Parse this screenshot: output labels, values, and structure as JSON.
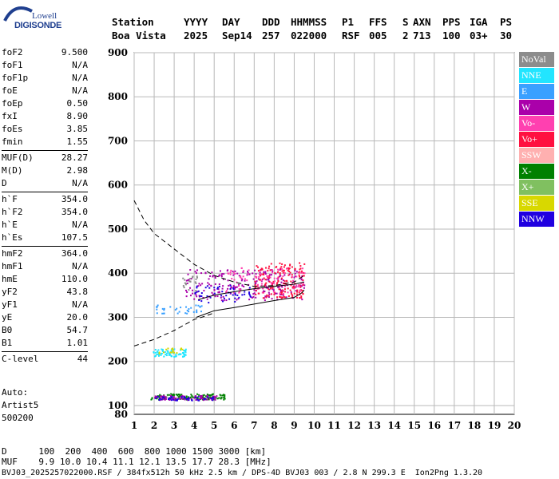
{
  "logo": {
    "line1": "Lowell",
    "line2": "DIGISONDE"
  },
  "header": {
    "row1": [
      "Station",
      "YYYY",
      "DAY",
      "DDD",
      "HHMMSS",
      "P1",
      "FFS",
      "S",
      "AXN",
      "PPS",
      "IGA",
      "PS"
    ],
    "row2": [
      "Boa Vista",
      "2025",
      "Sep14",
      "257",
      "022000",
      "RSF",
      "005",
      "2",
      "713",
      "100",
      "03+",
      "30"
    ]
  },
  "params": [
    [
      [
        "foF2",
        "9.500"
      ],
      [
        "foF1",
        "N/A"
      ],
      [
        "foF1p",
        "N/A"
      ],
      [
        "foE",
        "N/A"
      ],
      [
        "foEp",
        "0.50"
      ],
      [
        "fxI",
        "8.90"
      ],
      [
        "foEs",
        "3.85"
      ],
      [
        "fmin",
        "1.55"
      ]
    ],
    [
      [
        "MUF(D)",
        "28.27"
      ],
      [
        "M(D)",
        "2.98"
      ],
      [
        "D",
        "N/A"
      ]
    ],
    [
      [
        "h`F",
        "354.0"
      ],
      [
        "h`F2",
        "354.0"
      ],
      [
        "h`E",
        "N/A"
      ],
      [
        "h`Es",
        "107.5"
      ]
    ],
    [
      [
        "hmF2",
        "364.0"
      ],
      [
        "hmF1",
        "N/A"
      ],
      [
        "hmE",
        "110.0"
      ],
      [
        "yF2",
        "43.8"
      ],
      [
        "yF1",
        "N/A"
      ],
      [
        "yE",
        "20.0"
      ],
      [
        "B0",
        "54.7"
      ],
      [
        "B1",
        "1.01"
      ]
    ],
    [
      [
        "C-level",
        "44"
      ]
    ]
  ],
  "auto": [
    "Auto:",
    "Artist5",
    "500200"
  ],
  "legend": [
    {
      "label": "NoVal",
      "color": "#8c8c8c"
    },
    {
      "label": "NNE",
      "color": "#22e5ff"
    },
    {
      "label": "E",
      "color": "#3aa0ff"
    },
    {
      "label": "W",
      "color": "#aa00aa"
    },
    {
      "label": "Vo-",
      "color": "#ff40b0"
    },
    {
      "label": "Vo+",
      "color": "#ff1040"
    },
    {
      "label": "SSW",
      "color": "#ffb0b0"
    },
    {
      "label": "X-",
      "color": "#008000"
    },
    {
      "label": "X+",
      "color": "#80c060"
    },
    {
      "label": "SSE",
      "color": "#d8d800"
    },
    {
      "label": "NNW",
      "color": "#2000e0"
    }
  ],
  "bottom": {
    "d_line": "D      100  200  400  600  800 1000 1500 3000 [km]",
    "muf_line": "MUF    9.9 10.0 10.4 11.1 12.1 13.5 17.7 28.3 [MHz]",
    "file_line": "BVJ03_2025257022000.RSF / 384fx512h 50 kHz 2.5 km / DPS-4D BVJ03 003 / 2.8 N 299.3 E  Ion2Png 1.3.20"
  },
  "chart_data": {
    "type": "scatter",
    "xlim": [
      1,
      20
    ],
    "ylim": [
      80,
      900
    ],
    "xticks": [
      "1",
      "2",
      "3",
      "4",
      "5",
      "6",
      "7",
      "8",
      "9",
      "10",
      "11",
      "12",
      "13",
      "14",
      "15",
      "16",
      "17",
      "18",
      "19",
      "20"
    ],
    "yticks": [
      "100",
      "200",
      "300",
      "400",
      "500",
      "600",
      "700",
      "800",
      "900"
    ],
    "grid": true,
    "clusters": [
      {
        "color": "#aa00aa",
        "x": [
          3.5,
          9.5
        ],
        "y": [
          340,
          410
        ],
        "n": 220
      },
      {
        "color": "#ff1040",
        "x": [
          7.0,
          9.5
        ],
        "y": [
          345,
          425
        ],
        "n": 170
      },
      {
        "color": "#ff40b0",
        "x": [
          5.5,
          9.5
        ],
        "y": [
          355,
          415
        ],
        "n": 90
      },
      {
        "color": "#2000e0",
        "x": [
          4.0,
          7.0
        ],
        "y": [
          335,
          375
        ],
        "n": 50
      },
      {
        "color": "#22e5ff",
        "x": [
          1.9,
          3.6
        ],
        "y": [
          212,
          230
        ],
        "n": 70
      },
      {
        "color": "#3aa0ff",
        "x": [
          2.0,
          4.5
        ],
        "y": [
          310,
          330
        ],
        "n": 35
      },
      {
        "color": "#008000",
        "x": [
          1.8,
          5.5
        ],
        "y": [
          115,
          128
        ],
        "n": 130
      },
      {
        "color": "#aa00aa",
        "x": [
          1.9,
          5.2
        ],
        "y": [
          114,
          124
        ],
        "n": 80
      },
      {
        "color": "#2000e0",
        "x": [
          2.0,
          5.0
        ],
        "y": [
          113,
          122
        ],
        "n": 45
      },
      {
        "color": "#d8d800",
        "x": [
          2.2,
          3.4
        ],
        "y": [
          218,
          232
        ],
        "n": 18
      },
      {
        "color": "#8c8c8c",
        "x": [
          3.3,
          4.2
        ],
        "y": [
          360,
          400
        ],
        "n": 20
      }
    ],
    "profile_solid": [
      [
        4.2,
        340
      ],
      [
        5,
        350
      ],
      [
        6,
        358
      ],
      [
        7,
        365
      ],
      [
        8,
        370
      ],
      [
        9,
        375
      ],
      [
        9.5,
        380
      ]
    ],
    "trace_solid": [
      [
        4.1,
        300
      ],
      [
        5,
        315
      ],
      [
        6,
        322
      ],
      [
        7,
        330
      ],
      [
        8,
        338
      ],
      [
        9,
        345
      ],
      [
        9.4,
        356
      ],
      [
        9.5,
        362
      ]
    ],
    "trace_dashed": [
      [
        1,
        565
      ],
      [
        1.5,
        520
      ],
      [
        2,
        490
      ],
      [
        3,
        455
      ],
      [
        4,
        420
      ],
      [
        5,
        395
      ],
      [
        6,
        380
      ],
      [
        7,
        370
      ],
      [
        8,
        372
      ],
      [
        9,
        380
      ],
      [
        9.5,
        395
      ]
    ],
    "trace_dashed_low": [
      [
        1,
        235
      ],
      [
        2,
        250
      ],
      [
        3,
        270
      ],
      [
        4,
        295
      ],
      [
        4.5,
        302
      ],
      [
        5,
        310
      ]
    ]
  }
}
